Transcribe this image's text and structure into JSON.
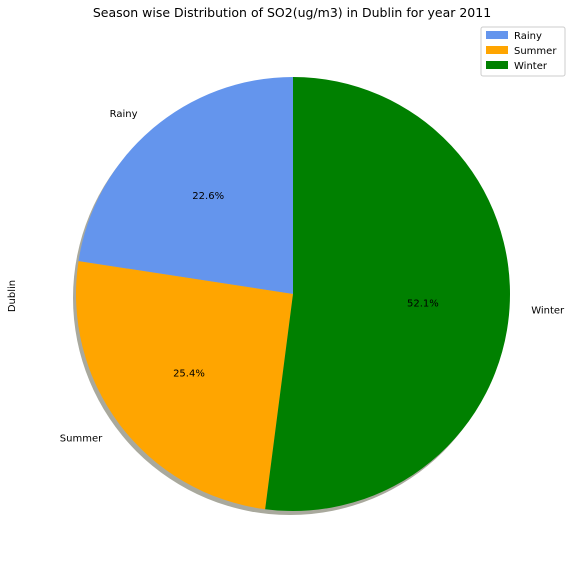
{
  "chart_data": {
    "type": "pie",
    "title": "Season wise Distribution of SO2(ug/m3) in Dublin for year 2011",
    "ylabel": "Dublin",
    "slices": [
      {
        "label": "Rainy",
        "value": 22.6,
        "pct_label": "22.6%",
        "color": "#6495ed"
      },
      {
        "label": "Summer",
        "value": 25.4,
        "pct_label": "25.4%",
        "color": "#ffa500"
      },
      {
        "label": "Winter",
        "value": 52.1,
        "pct_label": "52.1%",
        "color": "#008000"
      }
    ],
    "legend": {
      "placement": "top-right",
      "entries": [
        "Rainy",
        "Summer",
        "Winter"
      ]
    },
    "shadow": true,
    "start_angle": "top, counter-clockwise"
  }
}
